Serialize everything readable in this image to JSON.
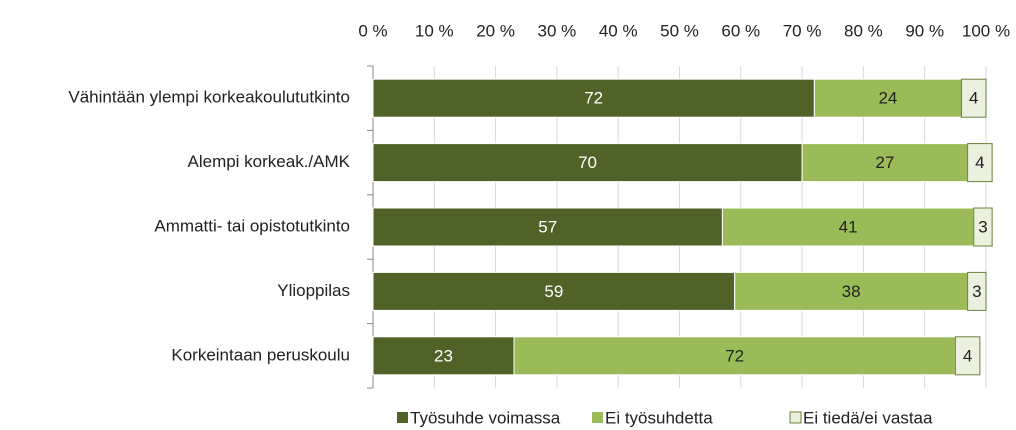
{
  "chart_data": {
    "type": "stacked-bar-horizontal",
    "categories": [
      "Vähintään ylempi korkeakoulututkinto",
      "Alempi korkeak./AMK",
      "Ammatti- tai opistotutkinto",
      "Ylioppilas",
      "Korkeintaan peruskoulu"
    ],
    "series": [
      {
        "name": "Työsuhde voimassa",
        "color": "#4f6228",
        "values": [
          72,
          70,
          57,
          59,
          23
        ]
      },
      {
        "name": "Ei työsuhdetta",
        "color": "#9bbb59",
        "values": [
          24,
          27,
          41,
          38,
          72
        ]
      },
      {
        "name": "Ei tiedä/ei vastaa",
        "color": "#ebf1de",
        "values": [
          4,
          4,
          3,
          3,
          4
        ]
      }
    ],
    "xlim": [
      0,
      100
    ],
    "xticks": [
      {
        "value": 0,
        "label": "0 %"
      },
      {
        "value": 10,
        "label": "10 %"
      },
      {
        "value": 20,
        "label": "20 %"
      },
      {
        "value": 30,
        "label": "30 %"
      },
      {
        "value": 40,
        "label": "40 %"
      },
      {
        "value": 50,
        "label": "50 %"
      },
      {
        "value": 60,
        "label": "60 %"
      },
      {
        "value": 70,
        "label": "70 %"
      },
      {
        "value": 80,
        "label": "80 %"
      },
      {
        "value": 90,
        "label": "90 %"
      },
      {
        "value": 100,
        "label": "100 %"
      }
    ],
    "grid": true,
    "legend": "bottom"
  }
}
